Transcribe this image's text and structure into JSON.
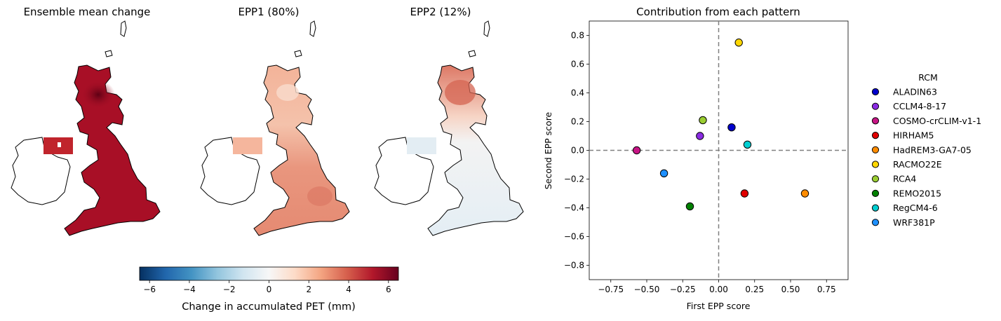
{
  "maps": [
    {
      "title": "Ensemble mean change"
    },
    {
      "title": "EPP1 (80%)"
    },
    {
      "title": "EPP2 (12%)"
    }
  ],
  "colorbar": {
    "label": "Change in accumulated PET (mm)",
    "range": [
      -6.5,
      6.5
    ],
    "ticks": [
      -6,
      -4,
      -2,
      0,
      2,
      4,
      6
    ],
    "tick_labels": [
      "−6",
      "−4",
      "−2",
      "0",
      "2",
      "4",
      "6"
    ],
    "colormap": [
      "#053061",
      "#2166ac",
      "#4393c3",
      "#92c5de",
      "#d1e5f0",
      "#f7f7f7",
      "#fddbc7",
      "#f4a582",
      "#d6604d",
      "#b2182b",
      "#67001f"
    ]
  },
  "chart_data": {
    "type": "scatter",
    "title": "Contribution from each pattern",
    "xlabel": "First EPP score",
    "ylabel": "Second EPP score",
    "xlim": [
      -0.9,
      0.9
    ],
    "ylim": [
      -0.9,
      0.9
    ],
    "xticks": [
      -0.75,
      -0.5,
      -0.25,
      0,
      0.25,
      0.5,
      0.75
    ],
    "xtick_labels": [
      "−0.75",
      "−0.50",
      "−0.25",
      "0.00",
      "0.25",
      "0.50",
      "0.75"
    ],
    "yticks": [
      -0.8,
      -0.6,
      -0.4,
      -0.2,
      0,
      0.2,
      0.4,
      0.6,
      0.8
    ],
    "ytick_labels": [
      "−0.8",
      "−0.6",
      "−0.4",
      "−0.2",
      "0.0",
      "0.2",
      "0.4",
      "0.6",
      "0.8"
    ],
    "reference_lines": {
      "x": 0,
      "y": 0,
      "style": "dashed"
    },
    "grid": false,
    "legend_title": "RCM",
    "legend_placement": "outside-right",
    "series": [
      {
        "name": "ALADIN63",
        "color": "#0000cc",
        "x": 0.09,
        "y": 0.16
      },
      {
        "name": "CCLM4-8-17",
        "color": "#8a2be2",
        "x": -0.13,
        "y": 0.1
      },
      {
        "name": "COSMO-crCLIM-v1-1",
        "color": "#c71585",
        "x": -0.57,
        "y": 0.0
      },
      {
        "name": "HIRHAM5",
        "color": "#e00000",
        "x": 0.18,
        "y": -0.3
      },
      {
        "name": "HadREM3-GA7-05",
        "color": "#ff8c00",
        "x": 0.6,
        "y": -0.3
      },
      {
        "name": "RACMO22E",
        "color": "#ffd700",
        "x": 0.14,
        "y": 0.75
      },
      {
        "name": "RCA4",
        "color": "#9acd32",
        "x": -0.11,
        "y": 0.21
      },
      {
        "name": "REMO2015",
        "color": "#008000",
        "x": -0.2,
        "y": -0.39
      },
      {
        "name": "RegCM4-6",
        "color": "#00ced1",
        "x": 0.2,
        "y": 0.04
      },
      {
        "name": "WRF381P",
        "color": "#1e90ff",
        "x": -0.38,
        "y": -0.16
      }
    ]
  }
}
